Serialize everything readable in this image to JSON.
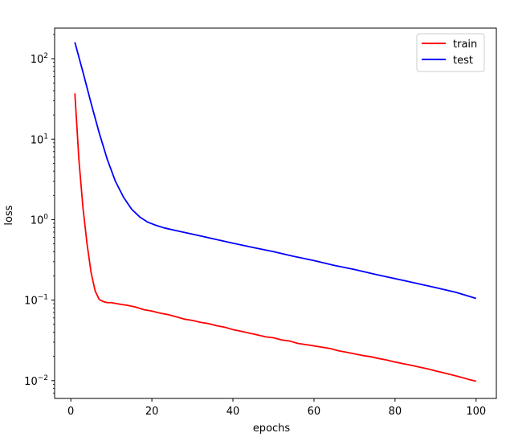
{
  "chart_data": {
    "type": "line",
    "title": "",
    "xlabel": "epochs",
    "ylabel": "loss",
    "xlim": [
      -4,
      105
    ],
    "ylim": [
      0.006,
      240
    ],
    "yscale": "log",
    "grid": false,
    "legend_position": "top-right",
    "x_ticks": [
      0,
      20,
      40,
      60,
      80,
      100
    ],
    "x_tick_labels": [
      "0",
      "20",
      "40",
      "60",
      "80",
      "100"
    ],
    "y_ticks": [
      0.01,
      0.1,
      1,
      10,
      100
    ],
    "y_tick_labels": [
      {
        "base": "10",
        "exp": "−2"
      },
      {
        "base": "10",
        "exp": "−1"
      },
      {
        "base": "10",
        "exp": "0"
      },
      {
        "base": "10",
        "exp": "1"
      },
      {
        "base": "10",
        "exp": "2"
      }
    ],
    "series": [
      {
        "name": "train",
        "color": "#ff0000",
        "x": [
          1,
          2,
          3,
          4,
          5,
          6,
          7,
          8,
          9,
          10,
          12,
          14,
          16,
          18,
          20,
          22,
          24,
          26,
          28,
          30,
          32,
          34,
          36,
          38,
          40,
          42,
          44,
          46,
          48,
          50,
          52,
          54,
          56,
          58,
          60,
          62,
          64,
          66,
          68,
          70,
          72,
          74,
          76,
          78,
          80,
          82,
          84,
          86,
          88,
          90,
          92,
          94,
          96,
          98,
          100
        ],
        "values": [
          37,
          5.5,
          1.4,
          0.5,
          0.22,
          0.13,
          0.102,
          0.096,
          0.093,
          0.093,
          0.089,
          0.086,
          0.082,
          0.076,
          0.073,
          0.069,
          0.066,
          0.062,
          0.058,
          0.056,
          0.053,
          0.051,
          0.048,
          0.046,
          0.043,
          0.041,
          0.039,
          0.037,
          0.035,
          0.034,
          0.032,
          0.031,
          0.029,
          0.028,
          0.027,
          0.026,
          0.025,
          0.0235,
          0.0225,
          0.0215,
          0.0205,
          0.0198,
          0.0188,
          0.018,
          0.017,
          0.0162,
          0.0155,
          0.0147,
          0.014,
          0.0132,
          0.0125,
          0.0118,
          0.0111,
          0.0104,
          0.0098
        ]
      },
      {
        "name": "test",
        "color": "#0000ff",
        "x": [
          1,
          3,
          5,
          7,
          9,
          11,
          13,
          15,
          17,
          19,
          21,
          23,
          25,
          30,
          35,
          40,
          45,
          50,
          55,
          60,
          65,
          70,
          75,
          80,
          85,
          90,
          95,
          100
        ],
        "values": [
          160,
          68,
          28,
          12,
          5.6,
          3.0,
          1.9,
          1.35,
          1.08,
          0.93,
          0.85,
          0.79,
          0.75,
          0.66,
          0.58,
          0.51,
          0.45,
          0.4,
          0.35,
          0.31,
          0.27,
          0.24,
          0.21,
          0.185,
          0.163,
          0.143,
          0.125,
          0.105
        ]
      }
    ]
  }
}
